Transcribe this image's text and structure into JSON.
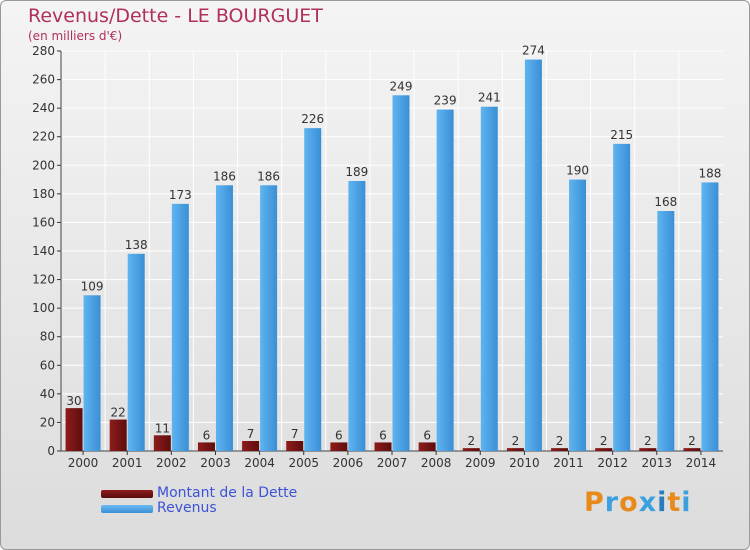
{
  "chart_data": {
    "type": "bar",
    "title": "Revenus/Dette - LE BOURGUET",
    "subtitle": "(en milliers d'€)",
    "categories": [
      "2000",
      "2001",
      "2002",
      "2003",
      "2004",
      "2005",
      "2006",
      "2007",
      "2008",
      "2009",
      "2010",
      "2011",
      "2012",
      "2013",
      "2014"
    ],
    "series": [
      {
        "name": "Montant de la Dette",
        "color": "#7a1414",
        "values": [
          30,
          22,
          11,
          6,
          7,
          7,
          6,
          6,
          6,
          2,
          2,
          2,
          2,
          2,
          2
        ]
      },
      {
        "name": "Revenus",
        "color": "#4aa3e8",
        "values": [
          109,
          138,
          173,
          186,
          186,
          226,
          189,
          249,
          239,
          241,
          274,
          190,
          215,
          168,
          188
        ]
      }
    ],
    "ylim": [
      0,
      280
    ],
    "yticks": [
      0,
      20,
      40,
      60,
      80,
      100,
      120,
      140,
      160,
      180,
      200,
      220,
      240,
      260,
      280
    ],
    "grid": true,
    "legend_position": "bottom-left"
  },
  "logo": {
    "text": "Proxiti",
    "colors": [
      "#e88a1a",
      "#3aa0e0",
      "#e88a1a",
      "#3aa0e0",
      "#2a7bc0",
      "#e88a1a",
      "#3aa0e0"
    ]
  }
}
